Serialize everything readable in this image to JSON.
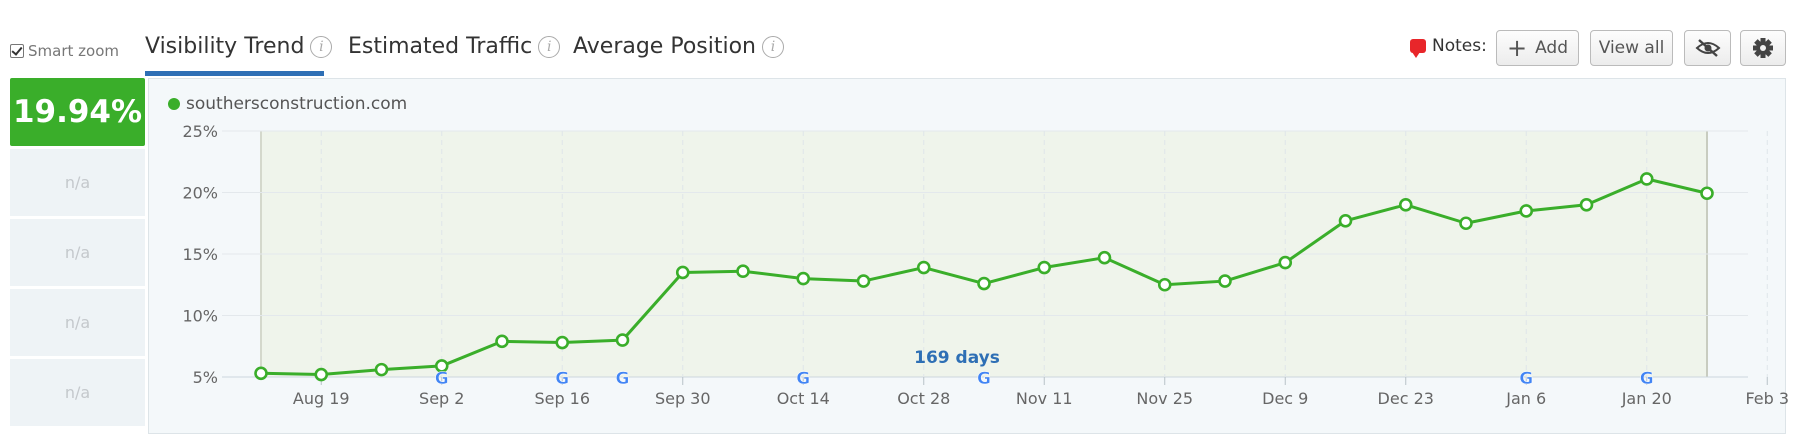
{
  "toolbar": {
    "smart_zoom_label": "Smart zoom",
    "smart_zoom_checked": true
  },
  "tabs": [
    {
      "label": "Visibility Trend",
      "active": true
    },
    {
      "label": "Estimated Traffic",
      "active": false
    },
    {
      "label": "Average Position",
      "active": false
    }
  ],
  "notes": {
    "label": "Notes:",
    "add_label": "Add",
    "view_all_label": "View all"
  },
  "stats": {
    "current": "19.94%",
    "others": [
      "n/a",
      "n/a",
      "n/a",
      "n/a"
    ]
  },
  "colors": {
    "accent_green": "#3aae2a",
    "tab_underline": "#2e6fb5",
    "annotation_blue": "#2e6fb5"
  },
  "chart_data": {
    "type": "line",
    "series": [
      {
        "name": "southersconstruction.com",
        "values": [
          5.3,
          5.2,
          5.6,
          5.9,
          7.9,
          7.8,
          8.0,
          13.5,
          13.6,
          13.0,
          12.8,
          13.9,
          12.6,
          13.9,
          14.7,
          12.5,
          12.8,
          14.3,
          17.7,
          19.0,
          17.5,
          18.5,
          19.0,
          21.1,
          19.94
        ]
      }
    ],
    "x": [
      "Aug 12",
      "Aug 19",
      "Aug 26",
      "Sep 2",
      "Sep 9",
      "Sep 16",
      "Sep 23",
      "Sep 30",
      "Oct 7",
      "Oct 14",
      "Oct 21",
      "Oct 28",
      "Nov 4",
      "Nov 11",
      "Nov 18",
      "Nov 25",
      "Dec 2",
      "Dec 9",
      "Dec 16",
      "Dec 23",
      "Dec 30",
      "Jan 6",
      "Jan 13",
      "Jan 20",
      "Jan 27"
    ],
    "x_tick_labels": [
      "Aug 19",
      "Sep 2",
      "Sep 16",
      "Sep 30",
      "Oct 14",
      "Oct 28",
      "Nov 11",
      "Nov 25",
      "Dec 9",
      "Dec 23",
      "Jan 6",
      "Jan 20",
      "Feb 3"
    ],
    "y_tick_labels": [
      "5%",
      "10%",
      "15%",
      "20%",
      "25%"
    ],
    "ylim": [
      5,
      25
    ],
    "annotation": "169 days",
    "google_update_dates": [
      "Sep 2",
      "Sep 16",
      "Sep 23",
      "Oct 14",
      "Nov 4",
      "Jan 6",
      "Jan 20"
    ],
    "google_marker": "G",
    "legend_position": "top-left",
    "grid": true
  }
}
